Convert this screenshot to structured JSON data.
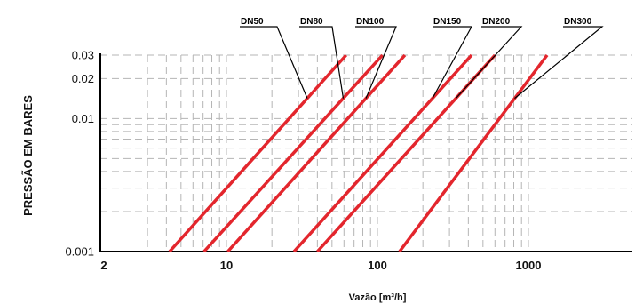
{
  "chart_data": {
    "type": "line",
    "title": "",
    "xlabel": "Vazão [m³/h]",
    "ylabel": "PRESSÃO EM BARES",
    "x_scale": "log",
    "y_scale": "log",
    "xlim": [
      2,
      1400
    ],
    "ylim": [
      0.001,
      0.03
    ],
    "x_ticks": [
      2,
      10,
      100,
      1000
    ],
    "x_tick_labels": [
      "2",
      "10",
      "100",
      "1000"
    ],
    "y_ticks": [
      0.001,
      0.01,
      0.02,
      0.03
    ],
    "y_tick_labels": [
      "0.001",
      "0.01",
      "0.02",
      "0.03"
    ],
    "grid": true,
    "line_color": "#e3262d",
    "series": [
      {
        "name": "DN50",
        "x": [
          4.2,
          62
        ],
        "y": [
          0.001,
          0.03
        ]
      },
      {
        "name": "DN80",
        "x": [
          7.1,
          108
        ],
        "y": [
          0.001,
          0.03
        ]
      },
      {
        "name": "DN100",
        "x": [
          10.2,
          152
        ],
        "y": [
          0.001,
          0.03
        ]
      },
      {
        "name": "DN150",
        "x": [
          28,
          420
        ],
        "y": [
          0.001,
          0.03
        ]
      },
      {
        "name": "DN200",
        "x": [
          40,
          600
        ],
        "y": [
          0.001,
          0.03
        ]
      },
      {
        "name": "DN300",
        "x": [
          140,
          1330
        ],
        "y": [
          0.001,
          0.03
        ]
      }
    ]
  }
}
